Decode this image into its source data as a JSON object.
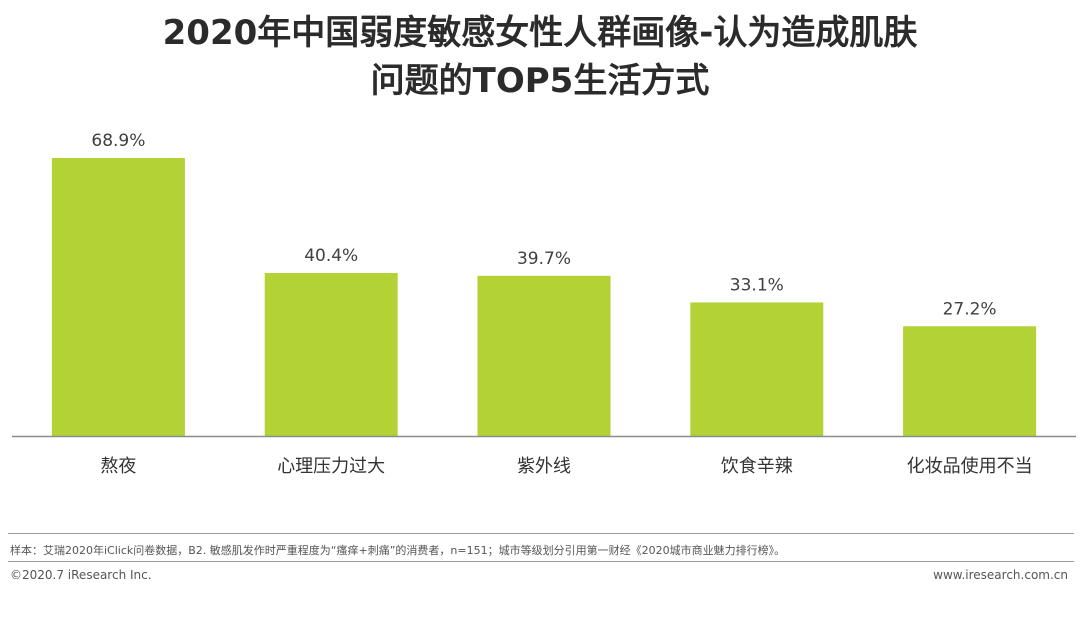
{
  "title": {
    "line1": "2020年中国弱度敏感女性人群画像-认为造成肌肤",
    "line2": "问题的TOP5生活方式"
  },
  "chart_data": {
    "type": "bar",
    "categories": [
      "熬夜",
      "心理压力过大",
      "紫外线",
      "饮食辛辣",
      "化妆品使用不当"
    ],
    "values": [
      68.9,
      40.4,
      39.7,
      33.1,
      27.2
    ],
    "value_labels": [
      "68.9%",
      "40.4%",
      "39.7%",
      "33.1%",
      "27.2%"
    ],
    "ylim": [
      0,
      100
    ],
    "bar_color": "#b2d235",
    "grid": false
  },
  "footer": {
    "note": "样本：艾瑞2020年iClick问卷数据，B2. 敏感肌发作时严重程度为“瘙痒+刺痛”的消费者，n=151；城市等级划分引用第一财经《2020城市商业魅力排行榜》。",
    "copyright": "©2020.7 iResearch Inc.",
    "website": "www.iresearch.com.cn"
  }
}
